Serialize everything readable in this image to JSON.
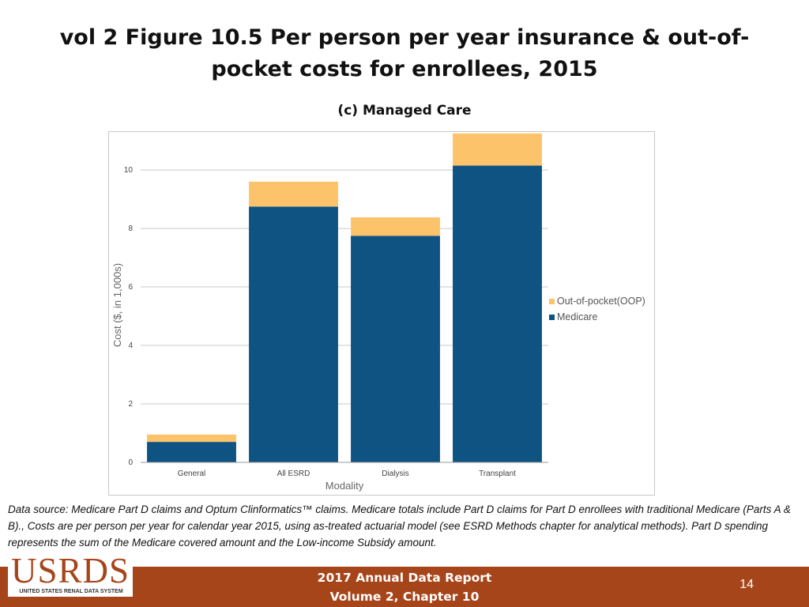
{
  "slide": {
    "title": "vol 2 Figure 10.5 Per person per year insurance & out-of-pocket costs for enrollees, 2015",
    "data_source": "Data source: Medicare Part D claims and Optum Clinformatics™ claims. Medicare totals include Part D claims for Part D enrollees with traditional Medicare (Parts A & B)., Costs are per person per year for calendar year 2015, using as-treated actuarial model (see ESRD Methods chapter for analytical methods). Part D spending represents the sum of the Medicare covered amount and the Low-income Subsidy amount.",
    "footer_line1": "2017 Annual Data Report",
    "footer_line2": "Volume 2, Chapter 10",
    "page_number": "14",
    "logo_text": "USRDS",
    "logo_subtext": "UNITED STATES RENAL DATA SYSTEM",
    "footer_color": "#a7451a"
  },
  "chart_data": {
    "type": "bar",
    "stacked": true,
    "title": "(c) Managed Care",
    "xlabel": "Modality",
    "ylabel": "Cost ($, in 1,000s)",
    "categories": [
      "General",
      "All ESRD",
      "Dialysis",
      "Transplant"
    ],
    "series": [
      {
        "name": "Medicare",
        "color": "#0f5383",
        "values": [
          0.7,
          8.75,
          7.75,
          10.15
        ]
      },
      {
        "name": "Out-of-pocket(OOP)",
        "color": "#fdc36b",
        "values": [
          0.25,
          0.85,
          0.63,
          1.1
        ]
      }
    ],
    "ylim": [
      0,
      11.3
    ],
    "yticks": [
      0,
      2,
      4,
      6,
      8,
      10
    ],
    "grid": true,
    "legend_position": "right"
  }
}
